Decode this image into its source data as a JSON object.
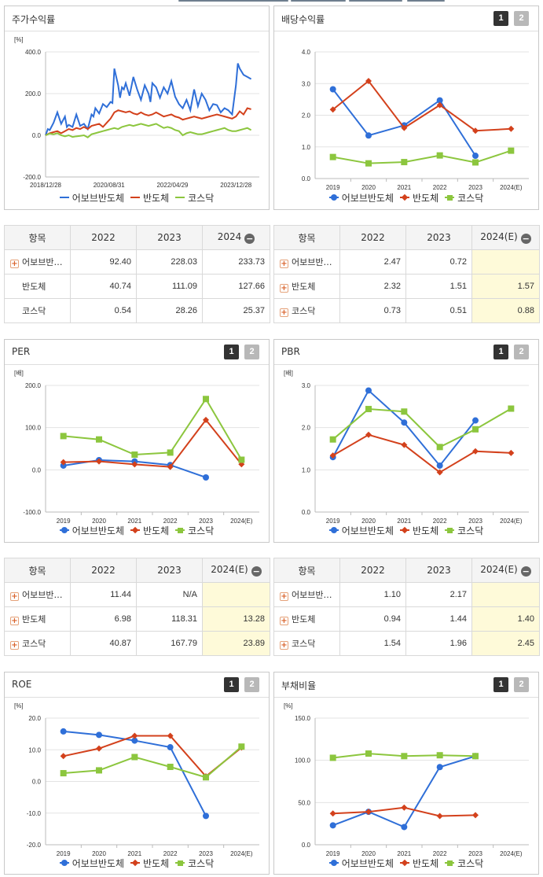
{
  "legend_names": [
    "어보브반도체",
    "반도체",
    "코스닥"
  ],
  "colors": {
    "company": "#2f6fd8",
    "industry": "#d3411c",
    "kosdaq": "#8cc63e"
  },
  "toggle_labels": [
    "1",
    "2"
  ],
  "minus_symbol": "−",
  "plus_symbol": "+",
  "charts": [
    {
      "id": "stock-return",
      "title": "주가수익률",
      "has_toggle": false,
      "chart_data": {
        "type": "line",
        "unit": "[%]",
        "ylim": [
          -200,
          400
        ],
        "yticks": [
          "400.0",
          "200.0",
          "0.0",
          "-200.0"
        ],
        "xticks": [
          "2018/12/28",
          "2020/08/31",
          "2022/04/29",
          "2023/12/28"
        ],
        "xlim": [
          2018.99,
          2024.45
        ],
        "series": [
          {
            "name": "어보브반도체",
            "x": [
              2018.99,
              2019.05,
              2019.1,
              2019.2,
              2019.3,
              2019.4,
              2019.5,
              2019.55,
              2019.6,
              2019.7,
              2019.8,
              2019.9,
              2020.0,
              2020.1,
              2020.2,
              2020.25,
              2020.3,
              2020.4,
              2020.5,
              2020.6,
              2020.7,
              2020.75,
              2020.8,
              2020.9,
              2020.95,
              2021.0,
              2021.05,
              2021.1,
              2021.2,
              2021.3,
              2021.4,
              2021.5,
              2021.6,
              2021.7,
              2021.75,
              2021.8,
              2021.9,
              2022.0,
              2022.1,
              2022.2,
              2022.3,
              2022.4,
              2022.5,
              2022.6,
              2022.7,
              2022.8,
              2022.9,
              2023.0,
              2023.1,
              2023.2,
              2023.3,
              2023.4,
              2023.5,
              2023.6,
              2023.7,
              2023.8,
              2023.9,
              2024.0,
              2024.05,
              2024.1,
              2024.2,
              2024.3,
              2024.4
            ],
            "y": [
              0,
              30,
              25,
              60,
              110,
              55,
              90,
              40,
              50,
              40,
              100,
              45,
              55,
              30,
              100,
              90,
              130,
              105,
              150,
              135,
              160,
              155,
              320,
              240,
              180,
              230,
              220,
              250,
              190,
              280,
              220,
              170,
              240,
              200,
              160,
              250,
              230,
              180,
              230,
              200,
              260,
              185,
              150,
              130,
              170,
              120,
              220,
              140,
              200,
              170,
              120,
              150,
              145,
              110,
              130,
              120,
              100,
              240,
              345,
              320,
              290,
              280,
              270
            ]
          },
          {
            "name": "반도체",
            "x": [
              2018.99,
              2019.1,
              2019.2,
              2019.3,
              2019.4,
              2019.5,
              2019.6,
              2019.7,
              2019.8,
              2019.9,
              2020.0,
              2020.1,
              2020.2,
              2020.3,
              2020.4,
              2020.5,
              2020.6,
              2020.7,
              2020.8,
              2020.9,
              2021.0,
              2021.1,
              2021.2,
              2021.3,
              2021.4,
              2021.5,
              2021.6,
              2021.7,
              2021.8,
              2021.9,
              2022.0,
              2022.1,
              2022.2,
              2022.3,
              2022.4,
              2022.5,
              2022.6,
              2022.7,
              2022.8,
              2022.9,
              2023.0,
              2023.1,
              2023.2,
              2023.3,
              2023.4,
              2023.5,
              2023.6,
              2023.7,
              2023.8,
              2023.9,
              2024.0,
              2024.1,
              2024.2,
              2024.3,
              2024.4
            ],
            "y": [
              0,
              10,
              15,
              20,
              10,
              20,
              30,
              25,
              35,
              30,
              40,
              30,
              45,
              50,
              55,
              40,
              60,
              80,
              110,
              120,
              115,
              110,
              115,
              105,
              100,
              110,
              100,
              95,
              100,
              110,
              100,
              90,
              95,
              100,
              90,
              85,
              75,
              80,
              85,
              90,
              85,
              80,
              85,
              90,
              95,
              100,
              95,
              90,
              85,
              80,
              90,
              115,
              100,
              130,
              125
            ]
          },
          {
            "name": "코스닥",
            "x": [
              2018.99,
              2019.1,
              2019.2,
              2019.3,
              2019.4,
              2019.5,
              2019.6,
              2019.7,
              2019.8,
              2019.9,
              2020.0,
              2020.1,
              2020.2,
              2020.3,
              2020.4,
              2020.5,
              2020.6,
              2020.7,
              2020.8,
              2020.9,
              2021.0,
              2021.1,
              2021.2,
              2021.3,
              2021.4,
              2021.5,
              2021.6,
              2021.7,
              2021.8,
              2021.9,
              2022.0,
              2022.1,
              2022.2,
              2022.3,
              2022.4,
              2022.5,
              2022.6,
              2022.7,
              2022.8,
              2022.9,
              2023.0,
              2023.1,
              2023.2,
              2023.3,
              2023.4,
              2023.5,
              2023.6,
              2023.7,
              2023.8,
              2023.9,
              2024.0,
              2024.1,
              2024.2,
              2024.3,
              2024.4
            ],
            "y": [
              0,
              8,
              5,
              10,
              0,
              -5,
              0,
              -8,
              -5,
              -3,
              0,
              -10,
              5,
              10,
              15,
              20,
              25,
              30,
              35,
              30,
              40,
              45,
              50,
              45,
              50,
              55,
              50,
              45,
              50,
              55,
              45,
              35,
              40,
              35,
              25,
              20,
              0,
              10,
              15,
              10,
              5,
              5,
              10,
              15,
              20,
              25,
              30,
              35,
              25,
              20,
              20,
              25,
              30,
              35,
              25
            ]
          }
        ]
      }
    },
    {
      "id": "dividend-yield",
      "title": "배당수익률",
      "has_toggle": true,
      "chart_data": {
        "type": "line",
        "unit": "",
        "ylim": [
          0,
          4
        ],
        "yticks": [
          "4.0",
          "3.0",
          "2.0",
          "1.0",
          "0.0"
        ],
        "categories": [
          "2019",
          "2020",
          "2021",
          "2022",
          "2023",
          "2024(E)"
        ],
        "series": [
          {
            "name": "어보브반도체",
            "values": [
              2.82,
              1.36,
              1.68,
              2.47,
              0.72,
              null
            ]
          },
          {
            "name": "반도체",
            "values": [
              2.18,
              3.08,
              1.6,
              2.32,
              1.51,
              1.57
            ]
          },
          {
            "name": "코스닥",
            "values": [
              0.68,
              0.48,
              0.52,
              0.73,
              0.51,
              0.88
            ]
          }
        ]
      }
    },
    {
      "id": "per",
      "title": "PER",
      "has_toggle": true,
      "chart_data": {
        "type": "line",
        "unit": "[배]",
        "ylim": [
          -100,
          200
        ],
        "yticks": [
          "200.0",
          "100.0",
          "0.0",
          "-100.0"
        ],
        "categories": [
          "2019",
          "2020",
          "2021",
          "2022",
          "2023",
          "2024(E)"
        ],
        "series": [
          {
            "name": "어보브반도체",
            "values": [
              10,
              23,
              20,
              11.44,
              -18,
              null
            ]
          },
          {
            "name": "반도체",
            "values": [
              18,
              20,
              13,
              6.98,
              118.31,
              13.28
            ]
          },
          {
            "name": "코스닥",
            "values": [
              80,
              72,
              36,
              40.87,
              167.79,
              23.89
            ]
          }
        ]
      }
    },
    {
      "id": "pbr",
      "title": "PBR",
      "has_toggle": true,
      "chart_data": {
        "type": "line",
        "unit": "[배]",
        "ylim": [
          0,
          3
        ],
        "yticks": [
          "3.0",
          "2.0",
          "1.0",
          "0.0"
        ],
        "categories": [
          "2019",
          "2020",
          "2021",
          "2022",
          "2023",
          "2024(E)"
        ],
        "series": [
          {
            "name": "어보브반도체",
            "values": [
              1.3,
              2.88,
              2.12,
              1.1,
              2.17,
              null
            ]
          },
          {
            "name": "반도체",
            "values": [
              1.34,
              1.83,
              1.59,
              0.94,
              1.44,
              1.4
            ]
          },
          {
            "name": "코스닥",
            "values": [
              1.72,
              2.44,
              2.38,
              1.54,
              1.96,
              2.45
            ]
          }
        ]
      }
    },
    {
      "id": "roe",
      "title": "ROE",
      "has_toggle": true,
      "chart_data": {
        "type": "line",
        "unit": "[%]",
        "ylim": [
          -20,
          20
        ],
        "yticks": [
          "20.0",
          "10.0",
          "0.0",
          "-10.0",
          "-20.0"
        ],
        "categories": [
          "2019",
          "2020",
          "2021",
          "2022",
          "2023",
          "2024(E)"
        ],
        "series": [
          {
            "name": "어보브반도체",
            "values": [
              15.8,
              14.7,
              12.9,
              10.8,
              -10.9,
              null
            ]
          },
          {
            "name": "반도체",
            "values": [
              8.0,
              10.4,
              14.4,
              14.4,
              1.6,
              10.7
            ]
          },
          {
            "name": "코스닥",
            "values": [
              2.6,
              3.5,
              7.7,
              4.6,
              1.3,
              11.0
            ]
          }
        ]
      }
    },
    {
      "id": "debt-ratio",
      "title": "부채비율",
      "has_toggle": true,
      "chart_data": {
        "type": "line",
        "unit": "[%]",
        "ylim": [
          0,
          150
        ],
        "yticks": [
          "150.0",
          "100.0",
          "50.0",
          "0.0"
        ],
        "categories": [
          "2019",
          "2020",
          "2021",
          "2022",
          "2023",
          "2024(E)"
        ],
        "series": [
          {
            "name": "어보브반도체",
            "values": [
              23,
              39,
              21,
              92,
              105,
              null
            ]
          },
          {
            "name": "반도체",
            "values": [
              37,
              39,
              44,
              34,
              35,
              null
            ]
          },
          {
            "name": "코스닥",
            "values": [
              103,
              108,
              105,
              106,
              105,
              null
            ]
          }
        ]
      }
    }
  ],
  "tables": [
    {
      "id": "stock-return-table",
      "headers": [
        "항목",
        "2022",
        "2023",
        "2024"
      ],
      "highlight_last": false,
      "rows": [
        {
          "name": "어보브반…",
          "plus": true,
          "values": [
            "92.40",
            "228.03",
            "233.73"
          ]
        },
        {
          "name": "반도체",
          "plus": false,
          "values": [
            "40.74",
            "111.09",
            "127.66"
          ]
        },
        {
          "name": "코스닥",
          "plus": false,
          "values": [
            "0.54",
            "28.26",
            "25.37"
          ]
        }
      ]
    },
    {
      "id": "dividend-table",
      "headers": [
        "항목",
        "2022",
        "2023",
        "2024(E)"
      ],
      "highlight_last": true,
      "rows": [
        {
          "name": "어보브반…",
          "plus": true,
          "values": [
            "2.47",
            "0.72",
            ""
          ]
        },
        {
          "name": "반도체",
          "plus": true,
          "values": [
            "2.32",
            "1.51",
            "1.57"
          ]
        },
        {
          "name": "코스닥",
          "plus": true,
          "values": [
            "0.73",
            "0.51",
            "0.88"
          ]
        }
      ]
    },
    {
      "id": "per-table",
      "headers": [
        "항목",
        "2022",
        "2023",
        "2024(E)"
      ],
      "highlight_last": true,
      "rows": [
        {
          "name": "어보브반…",
          "plus": true,
          "values": [
            "11.44",
            "N/A",
            ""
          ]
        },
        {
          "name": "반도체",
          "plus": true,
          "values": [
            "6.98",
            "118.31",
            "13.28"
          ]
        },
        {
          "name": "코스닥",
          "plus": true,
          "values": [
            "40.87",
            "167.79",
            "23.89"
          ]
        }
      ]
    },
    {
      "id": "pbr-table",
      "headers": [
        "항목",
        "2022",
        "2023",
        "2024(E)"
      ],
      "highlight_last": true,
      "rows": [
        {
          "name": "어보브반…",
          "plus": true,
          "values": [
            "1.10",
            "2.17",
            ""
          ]
        },
        {
          "name": "반도체",
          "plus": true,
          "values": [
            "0.94",
            "1.44",
            "1.40"
          ]
        },
        {
          "name": "코스닥",
          "plus": true,
          "values": [
            "1.54",
            "1.96",
            "2.45"
          ]
        }
      ]
    }
  ]
}
